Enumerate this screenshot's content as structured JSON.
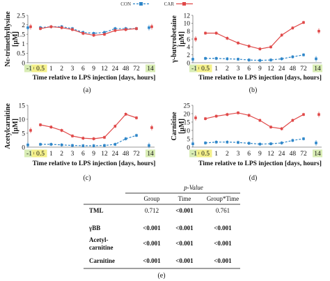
{
  "legend": {
    "con": "CON",
    "car": "CAR",
    "con_color": "#2e86c9",
    "car_color": "#e04848"
  },
  "highlight": {
    "days_color": "#d8ecb4",
    "hours_color": "#f4f08a"
  },
  "x_axis": {
    "label": "Time relative to LPS injection",
    "label_days": "days",
    "label_sep": ", ",
    "label_hours": "hours",
    "ticks": [
      "-1",
      "0",
      "0.5",
      "1",
      "2",
      "3",
      "6",
      "9",
      "12",
      "24",
      "48",
      "72",
      "14"
    ]
  },
  "chart_data": [
    {
      "type": "line",
      "panel": "(a)",
      "ylabel": "Nε-trimethyllysine\n[µM]",
      "ylim": [
        0,
        2.5
      ],
      "yticks": [
        "0",
        "0.5",
        "1",
        "1.5",
        "2",
        "2.5"
      ],
      "categories": [
        "0.5",
        "1",
        "2",
        "3",
        "6",
        "9",
        "12",
        "24",
        "48",
        "72"
      ],
      "series": [
        {
          "name": "CON",
          "values": [
            1.85,
            1.9,
            1.9,
            1.8,
            1.6,
            1.55,
            1.6,
            1.8,
            1.8,
            1.8
          ],
          "baseline": {
            "x": "-1",
            "value": 1.85
          },
          "final": {
            "x": "14",
            "value": 1.85
          }
        },
        {
          "name": "CAR",
          "values": [
            1.8,
            1.9,
            1.85,
            1.75,
            1.55,
            1.45,
            1.5,
            1.7,
            1.75,
            1.8
          ],
          "baseline": {
            "x": "-1",
            "value": 1.9
          },
          "final": {
            "x": "14",
            "value": 1.9
          }
        }
      ]
    },
    {
      "type": "line",
      "panel": "(b)",
      "ylabel": "γ-butyrobetaine\n[µM]",
      "ylim": [
        0,
        12
      ],
      "yticks": [
        "0",
        "2",
        "4",
        "6",
        "8",
        "10",
        "12"
      ],
      "categories": [
        "0.5",
        "1",
        "2",
        "3",
        "6",
        "9",
        "12",
        "24",
        "48",
        "72"
      ],
      "series": [
        {
          "name": "CON",
          "values": [
            1.1,
            1.1,
            1.0,
            0.9,
            0.7,
            0.6,
            0.7,
            1.0,
            1.5,
            2.0
          ],
          "baseline": {
            "x": "-1",
            "value": 0.9
          },
          "final": {
            "x": "14",
            "value": 1.0
          }
        },
        {
          "name": "CAR",
          "values": [
            7.5,
            7.5,
            6.2,
            5.0,
            4.2,
            3.5,
            4.0,
            7.0,
            8.8,
            10.2
          ],
          "baseline": {
            "x": "-1",
            "value": 6.0
          },
          "final": {
            "x": "14",
            "value": 8.0
          }
        }
      ]
    },
    {
      "type": "line",
      "panel": "(c)",
      "ylabel": "Acetylcarnitine\n[µM]",
      "ylim": [
        0,
        15
      ],
      "yticks": [
        "0",
        "5",
        "10",
        "15"
      ],
      "categories": [
        "0.5",
        "1",
        "2",
        "3",
        "6",
        "9",
        "12",
        "24",
        "48",
        "72"
      ],
      "series": [
        {
          "name": "CON",
          "values": [
            1.0,
            1.0,
            0.8,
            0.6,
            0.5,
            0.5,
            0.6,
            1.0,
            3.0,
            4.2
          ],
          "baseline": {
            "x": "-1",
            "value": 0.8
          },
          "final": {
            "x": "14",
            "value": 0.6
          }
        },
        {
          "name": "CAR",
          "values": [
            8.0,
            7.2,
            6.0,
            4.0,
            3.2,
            3.0,
            3.5,
            7.5,
            11.8,
            10.5
          ],
          "baseline": {
            "x": "-1",
            "value": 6.0
          },
          "final": {
            "x": "14",
            "value": 7.0
          }
        }
      ]
    },
    {
      "type": "line",
      "panel": "(d)",
      "ylabel": "Carnitine\n[µM]",
      "ylim": [
        0,
        25
      ],
      "yticks": [
        "0",
        "5",
        "10",
        "15",
        "20",
        "25"
      ],
      "categories": [
        "0.5",
        "1",
        "2",
        "3",
        "6",
        "9",
        "12",
        "24",
        "48",
        "72"
      ],
      "series": [
        {
          "name": "CON",
          "values": [
            2.5,
            3.0,
            3.0,
            2.8,
            2.3,
            1.8,
            2.0,
            2.5,
            4.0,
            5.0
          ],
          "baseline": {
            "x": "-1",
            "value": 2.0
          },
          "final": {
            "x": "14",
            "value": 2.5
          }
        },
        {
          "name": "CAR",
          "values": [
            17.0,
            18.5,
            19.5,
            20.5,
            19.0,
            16.0,
            12.0,
            11.0,
            16.0,
            19.5
          ],
          "baseline": {
            "x": "-1",
            "value": 17.5
          },
          "final": {
            "x": "14",
            "value": 19.5
          }
        }
      ]
    }
  ],
  "table": {
    "super_header": "p-Value",
    "columns": [
      "Group",
      "Time",
      "Group*Time"
    ],
    "rows": [
      {
        "label": [
          "TML"
        ],
        "cells": [
          "0.712",
          "<0.001",
          "0.761"
        ],
        "bold": [
          false,
          true,
          false
        ]
      },
      {
        "label": [
          "γBB"
        ],
        "cells": [
          "<0.001",
          "<0.001",
          "<0.001"
        ],
        "bold": [
          true,
          true,
          true
        ]
      },
      {
        "label": [
          "Acetyl-",
          "carnitine"
        ],
        "cells": [
          "<0.001",
          "<0.001",
          "<0.001"
        ],
        "bold": [
          true,
          true,
          true
        ]
      },
      {
        "label": [
          "Carnitine"
        ],
        "cells": [
          "<0.001",
          "<0.001",
          "<0.001"
        ],
        "bold": [
          true,
          true,
          true
        ]
      }
    ],
    "panel": "(e)"
  }
}
